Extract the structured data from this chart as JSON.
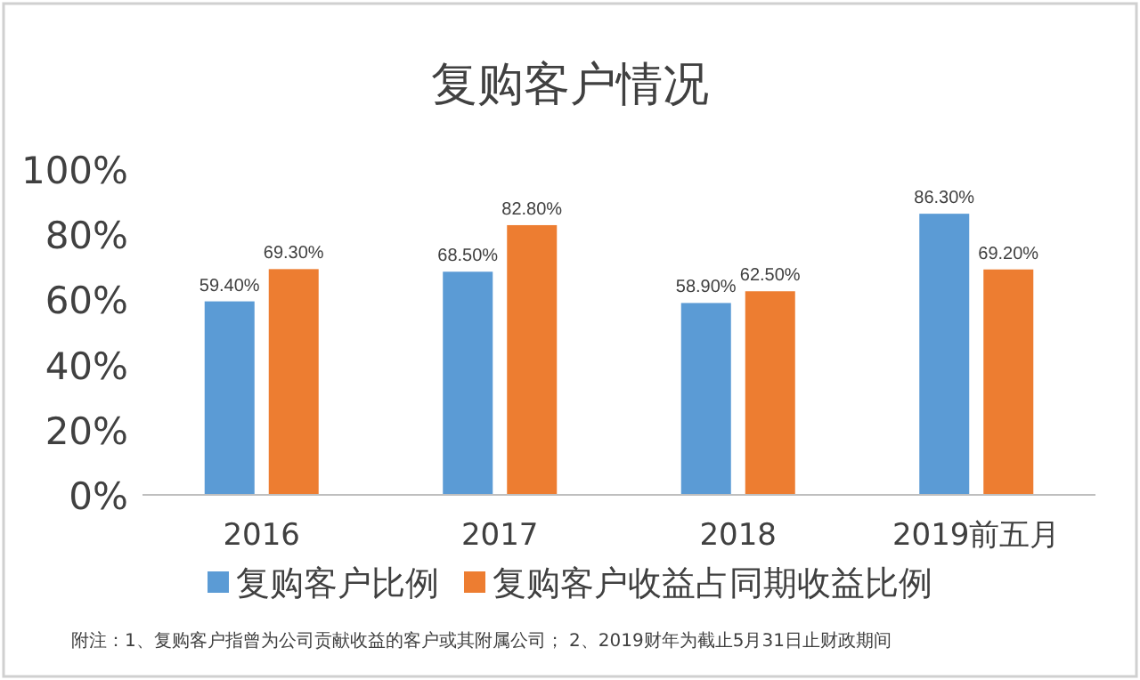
{
  "chart_data": {
    "type": "bar",
    "title": "复购客户情况",
    "categories": [
      "2016",
      "2017",
      "2018",
      "2019前五月"
    ],
    "series": [
      {
        "name": "复购客户比例",
        "color": "#5b9bd5",
        "values": [
          59.4,
          68.5,
          58.9,
          86.3
        ],
        "value_labels": [
          "59.40%",
          "68.50%",
          "58.90%",
          "86.30%"
        ]
      },
      {
        "name": "复购客户收益占同期收益比例",
        "color": "#ed7d31",
        "values": [
          69.3,
          82.8,
          62.5,
          69.2
        ],
        "value_labels": [
          "69.30%",
          "82.80%",
          "62.50%",
          "69.20%"
        ]
      }
    ],
    "ylim": [
      0,
      100
    ],
    "yticks": [
      {
        "value": 0,
        "label": "0%"
      },
      {
        "value": 20,
        "label": "20%"
      },
      {
        "value": 40,
        "label": "40%"
      },
      {
        "value": 60,
        "label": "60%"
      },
      {
        "value": 80,
        "label": "80%"
      },
      {
        "value": 100,
        "label": "100%"
      }
    ],
    "grid": false,
    "legend": "bottom",
    "annotations": [
      "附注：1、复购客户指曾为公司贡献收益的客户或其附属公司；  2、2019财年为截止5月31日止财政期间"
    ]
  }
}
